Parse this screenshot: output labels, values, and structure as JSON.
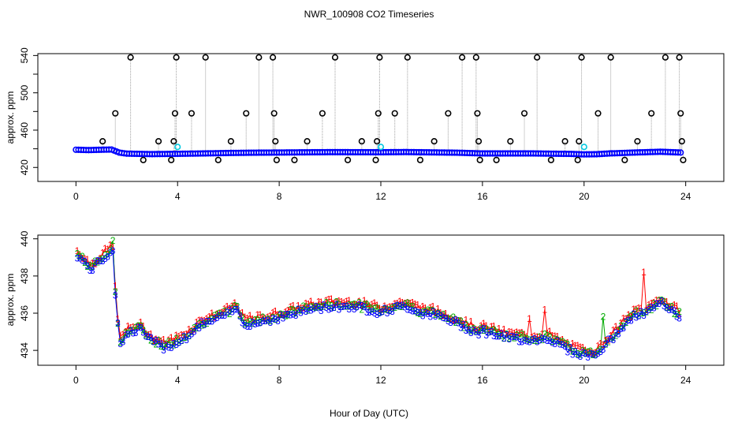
{
  "page": {
    "title": "NWR_100908  CO2 Timeseries",
    "xlabel": "Hour of Day (UTC)"
  },
  "colors": {
    "series1": "#ff0000",
    "series2": "#00aa00",
    "series3": "#0000ff",
    "calibration": "#00c8e0",
    "flagged": "#000000",
    "spike_line": "#a0a0a0"
  },
  "chart_data": [
    {
      "type": "scatter",
      "name": "top-panel",
      "title": "NWR_100908  CO2 Timeseries",
      "xlabel": "",
      "ylabel": "approx. ppm",
      "xlim": [
        -1.5,
        25.5
      ],
      "ylim": [
        405,
        542
      ],
      "xticks": [
        0,
        4,
        8,
        12,
        16,
        20,
        24
      ],
      "yticks": [
        420,
        440,
        460,
        480,
        500,
        520,
        540
      ],
      "ytick_labels": [
        "420",
        "",
        "460",
        "",
        "500",
        "",
        "540"
      ],
      "baseline": [
        [
          0,
          439
        ],
        [
          0.5,
          438.6
        ],
        [
          1,
          439
        ],
        [
          1.4,
          439.2
        ],
        [
          1.7,
          436
        ],
        [
          2,
          434.8
        ],
        [
          3,
          434.3
        ],
        [
          4,
          434.6
        ],
        [
          5,
          435
        ],
        [
          6,
          435.5
        ],
        [
          7,
          435.8
        ],
        [
          8,
          436
        ],
        [
          10,
          436.4
        ],
        [
          12,
          436.3
        ],
        [
          13,
          436.5
        ],
        [
          15,
          435.8
        ],
        [
          16,
          435
        ],
        [
          18,
          435
        ],
        [
          19.5,
          434.5
        ],
        [
          20,
          434
        ],
        [
          20.5,
          434.2
        ],
        [
          21,
          435
        ],
        [
          22,
          436
        ],
        [
          23,
          436.8
        ],
        [
          23.8,
          436
        ]
      ],
      "spikes": [
        [
          1.05,
          448
        ],
        [
          1.55,
          478
        ],
        [
          2.15,
          538
        ],
        [
          2.65,
          428
        ],
        [
          3.25,
          448
        ],
        [
          3.75,
          428
        ],
        [
          3.85,
          448
        ],
        [
          3.9,
          478
        ],
        [
          3.95,
          538
        ],
        [
          4.55,
          478
        ],
        [
          5.1,
          538
        ],
        [
          5.6,
          428
        ],
        [
          6.1,
          448
        ],
        [
          6.7,
          478
        ],
        [
          7.2,
          538
        ],
        [
          7.75,
          538
        ],
        [
          7.8,
          478
        ],
        [
          7.85,
          448
        ],
        [
          7.9,
          428
        ],
        [
          8.6,
          428
        ],
        [
          9.1,
          448
        ],
        [
          9.7,
          478
        ],
        [
          10.2,
          538
        ],
        [
          10.7,
          428
        ],
        [
          11.25,
          448
        ],
        [
          11.8,
          428
        ],
        [
          11.85,
          448
        ],
        [
          11.9,
          478
        ],
        [
          11.95,
          538
        ],
        [
          12.55,
          478
        ],
        [
          13.05,
          538
        ],
        [
          13.55,
          428
        ],
        [
          14.1,
          448
        ],
        [
          14.65,
          478
        ],
        [
          15.2,
          538
        ],
        [
          15.75,
          538
        ],
        [
          15.8,
          478
        ],
        [
          15.85,
          448
        ],
        [
          15.9,
          428
        ],
        [
          16.55,
          428
        ],
        [
          17.1,
          448
        ],
        [
          17.65,
          478
        ],
        [
          18.15,
          538
        ],
        [
          18.7,
          428
        ],
        [
          19.25,
          448
        ],
        [
          19.75,
          428
        ],
        [
          19.8,
          448
        ],
        [
          19.9,
          538
        ],
        [
          20.55,
          478
        ],
        [
          21.05,
          538
        ],
        [
          21.6,
          428
        ],
        [
          22.1,
          448
        ],
        [
          22.65,
          478
        ],
        [
          23.2,
          538
        ],
        [
          23.75,
          538
        ],
        [
          23.8,
          478
        ],
        [
          23.85,
          448
        ],
        [
          23.9,
          428
        ]
      ],
      "calibration_points": [
        [
          4.0,
          442
        ],
        [
          12.0,
          442
        ],
        [
          20.0,
          442
        ]
      ]
    },
    {
      "type": "scatter",
      "name": "bottom-panel",
      "xlabel": "Hour of Day (UTC)",
      "ylabel": "approx. ppm",
      "xlim": [
        -1.5,
        25.5
      ],
      "ylim": [
        433.2,
        440.2
      ],
      "xticks": [
        0,
        4,
        8,
        12,
        16,
        20,
        24
      ],
      "yticks": [
        434,
        436,
        438,
        440
      ],
      "series": [
        {
          "name": "1",
          "symbol": "1",
          "color": "#ff0000"
        },
        {
          "name": "2",
          "symbol": "2",
          "color": "#00aa00"
        },
        {
          "name": "3",
          "symbol": "3",
          "color": "#0000ff"
        }
      ],
      "anchors": [
        [
          0,
          439.3
        ],
        [
          0.3,
          438.9
        ],
        [
          0.6,
          438.5
        ],
        [
          1.0,
          439.0
        ],
        [
          1.25,
          439.3
        ],
        [
          1.45,
          439.6
        ],
        [
          1.6,
          436
        ],
        [
          1.75,
          434.6
        ],
        [
          2,
          435
        ],
        [
          2.5,
          435.3
        ],
        [
          3,
          434.6
        ],
        [
          3.5,
          434.3
        ],
        [
          4,
          434.6
        ],
        [
          4.5,
          435
        ],
        [
          5,
          435.6
        ],
        [
          5.5,
          435.8
        ],
        [
          6,
          436.1
        ],
        [
          6.3,
          436.4
        ],
        [
          6.6,
          435.6
        ],
        [
          7,
          435.6
        ],
        [
          8,
          435.9
        ],
        [
          9,
          436.3
        ],
        [
          10,
          436.5
        ],
        [
          11,
          436.5
        ],
        [
          12,
          436.2
        ],
        [
          12.5,
          436.4
        ],
        [
          13,
          436.5
        ],
        [
          13.5,
          436.2
        ],
        [
          14,
          436.1
        ],
        [
          15,
          435.6
        ],
        [
          15.8,
          435.1
        ],
        [
          16,
          435.2
        ],
        [
          17,
          434.8
        ],
        [
          18,
          434.7
        ],
        [
          18.6,
          434.8
        ],
        [
          19.5,
          434.1
        ],
        [
          20,
          433.9
        ],
        [
          20.5,
          433.9
        ],
        [
          20.8,
          434.4
        ],
        [
          21.2,
          434.9
        ],
        [
          21.5,
          435.4
        ],
        [
          22,
          436
        ],
        [
          22.5,
          436.2
        ],
        [
          23,
          436.7
        ],
        [
          23.5,
          436.2
        ],
        [
          23.8,
          436
        ]
      ],
      "series1_spikes": [
        [
          17.9,
          435.7
        ],
        [
          18.5,
          436.2
        ],
        [
          22.35,
          438.4
        ],
        [
          22.4,
          438.2
        ]
      ],
      "series2_spikes": [
        [
          20.75,
          435.8
        ],
        [
          1.45,
          439.9
        ]
      ]
    }
  ]
}
